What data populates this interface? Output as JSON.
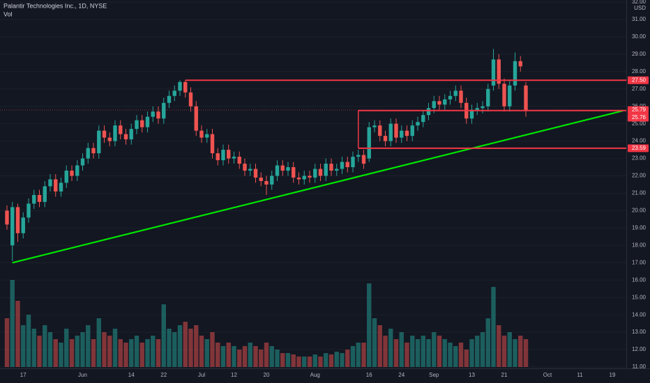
{
  "chart_data": {
    "type": "candlestick",
    "title": "Palantir Technologies Inc., 1D, NYSE",
    "volume_label": "Vol",
    "currency": "USD",
    "up_color": "#26a69a",
    "down_color": "#ef5350",
    "categories": [
      null,
      null,
      null,
      "17",
      null,
      null,
      null,
      null,
      null,
      null,
      null,
      null,
      null,
      null,
      "Jun",
      null,
      null,
      null,
      null,
      null,
      null,
      null,
      null,
      "14",
      null,
      null,
      null,
      null,
      null,
      "22",
      null,
      null,
      null,
      null,
      null,
      null,
      "Jul",
      null,
      null,
      null,
      null,
      null,
      "12",
      null,
      null,
      null,
      null,
      null,
      "20",
      null,
      null,
      null,
      null,
      null,
      null,
      null,
      null,
      "Aug",
      null,
      null,
      null,
      null,
      null,
      null,
      null,
      null,
      null,
      "16",
      null,
      null,
      null,
      null,
      null,
      "24",
      null,
      null,
      null,
      null,
      null,
      "Sep",
      null,
      null,
      null,
      null,
      null,
      null,
      "13",
      null,
      null,
      null,
      null,
      null,
      "21",
      null,
      null,
      null,
      null,
      null,
      null,
      null,
      "Oct",
      null,
      null,
      null,
      null,
      null,
      "11",
      null,
      null,
      null,
      null,
      null,
      "19",
      null,
      null
    ],
    "open": [
      20.0,
      18.0,
      20.2,
      18.7,
      19.6,
      20.4,
      20.9,
      20.5,
      21.4,
      21.8,
      21.1,
      21.6,
      22.3,
      22.0,
      22.6,
      23.0,
      23.6,
      23.3,
      24.6,
      24.2,
      24.0,
      24.9,
      24.4,
      24.1,
      24.7,
      25.2,
      24.8,
      25.4,
      25.7,
      25.3,
      26.2,
      26.6,
      26.9,
      27.4,
      26.8,
      26.0,
      24.6,
      24.2,
      24.4,
      23.3,
      22.9,
      23.5,
      23.0,
      23.1,
      22.7,
      22.3,
      22.4,
      21.9,
      21.7,
      21.5,
      22.0,
      22.6,
      22.3,
      22.5,
      21.9,
      21.8,
      22.0,
      21.9,
      22.4,
      22.0,
      22.7,
      22.3,
      22.4,
      22.8,
      22.5,
      23.1,
      23.2,
      23.0,
      24.8,
      24.9,
      24.3,
      24.0,
      25.0,
      24.2,
      24.6,
      24.3,
      24.9,
      25.1,
      25.5,
      25.9,
      26.3,
      26.1,
      26.4,
      26.6,
      26.9,
      26.2,
      25.3,
      25.8,
      25.9,
      26.0,
      27.2,
      28.7,
      27.3,
      26.0,
      27.2,
      28.6,
      27.2,
      null,
      null,
      null,
      null,
      null,
      null,
      null,
      null,
      null,
      null,
      null,
      null,
      null,
      null,
      null,
      null,
      null,
      null
    ],
    "high": [
      20.3,
      20.5,
      20.4,
      19.9,
      20.7,
      21.2,
      21.2,
      21.7,
      22.1,
      22.1,
      21.9,
      22.6,
      22.6,
      22.9,
      23.3,
      23.9,
      23.9,
      24.9,
      24.9,
      24.5,
      25.2,
      25.2,
      24.7,
      25.0,
      25.5,
      25.5,
      25.7,
      26.0,
      26.0,
      26.5,
      26.9,
      27.2,
      27.5,
      27.5,
      27.1,
      26.3,
      24.9,
      24.7,
      24.7,
      23.6,
      23.8,
      23.8,
      23.4,
      23.4,
      23.0,
      22.7,
      22.7,
      22.2,
      22.0,
      22.3,
      22.9,
      22.9,
      22.8,
      22.8,
      22.2,
      22.3,
      22.3,
      22.7,
      22.7,
      23.0,
      23.0,
      22.7,
      23.1,
      23.1,
      23.4,
      23.5,
      23.5,
      25.1,
      25.2,
      25.2,
      24.6,
      25.3,
      25.3,
      24.9,
      24.9,
      25.2,
      25.4,
      25.8,
      26.2,
      26.6,
      26.6,
      26.7,
      26.9,
      27.2,
      27.2,
      26.5,
      26.1,
      26.2,
      26.3,
      27.3,
      29.3,
      29.0,
      27.6,
      27.5,
      29.1,
      28.9,
      27.4,
      null,
      null,
      null,
      null,
      null,
      null,
      null,
      null,
      null,
      null,
      null,
      null,
      null,
      null,
      null,
      null,
      null,
      null
    ],
    "low": [
      18.9,
      17.1,
      18.2,
      18.4,
      19.3,
      20.1,
      20.2,
      20.2,
      21.1,
      20.8,
      20.8,
      21.3,
      21.7,
      21.7,
      22.3,
      22.7,
      23.0,
      23.0,
      23.9,
      23.7,
      23.7,
      24.1,
      23.8,
      23.8,
      24.4,
      24.5,
      24.5,
      25.1,
      25.0,
      25.0,
      25.9,
      26.3,
      26.6,
      26.5,
      25.7,
      24.3,
      23.9,
      23.9,
      23.0,
      22.6,
      22.6,
      22.7,
      22.7,
      22.4,
      22.0,
      22.0,
      21.6,
      21.4,
      20.9,
      21.2,
      21.7,
      22.0,
      22.0,
      21.6,
      21.5,
      21.5,
      21.6,
      21.6,
      21.7,
      21.7,
      22.0,
      22.0,
      22.1,
      22.2,
      22.2,
      22.8,
      22.4,
      22.8,
      24.5,
      24.0,
      23.7,
      23.7,
      23.9,
      23.9,
      24.0,
      24.0,
      24.6,
      24.8,
      25.2,
      25.6,
      25.8,
      25.8,
      26.1,
      26.3,
      25.9,
      25.0,
      25.0,
      25.5,
      25.6,
      25.7,
      26.9,
      27.0,
      25.7,
      25.7,
      26.9,
      28.0,
      25.4,
      null,
      null,
      null,
      null,
      null,
      null,
      null,
      null,
      null,
      null,
      null,
      null,
      null,
      null,
      null,
      null,
      null,
      null
    ],
    "close": [
      19.2,
      20.2,
      18.7,
      19.6,
      20.4,
      20.9,
      20.5,
      21.4,
      21.8,
      21.1,
      21.6,
      22.3,
      22.0,
      22.6,
      23.0,
      23.6,
      23.3,
      24.6,
      24.2,
      24.0,
      24.9,
      24.4,
      24.1,
      24.7,
      25.2,
      24.8,
      25.4,
      25.7,
      25.3,
      26.2,
      26.6,
      26.9,
      27.4,
      26.8,
      26.0,
      24.6,
      24.2,
      24.4,
      23.3,
      22.9,
      23.5,
      23.0,
      23.1,
      22.7,
      22.3,
      22.4,
      21.9,
      21.7,
      21.5,
      22.0,
      22.6,
      22.3,
      22.5,
      21.9,
      21.8,
      22.0,
      21.9,
      22.4,
      22.0,
      22.7,
      22.3,
      22.4,
      22.8,
      22.5,
      23.1,
      23.2,
      22.7,
      24.8,
      24.9,
      24.3,
      24.0,
      25.0,
      24.2,
      24.6,
      24.3,
      24.9,
      25.1,
      25.5,
      25.9,
      26.3,
      26.1,
      26.4,
      26.6,
      26.9,
      26.2,
      25.3,
      25.8,
      25.9,
      26.0,
      27.0,
      28.7,
      27.3,
      26.0,
      27.2,
      28.6,
      28.3,
      25.79,
      null,
      null,
      null,
      null,
      null,
      null,
      null,
      null,
      null,
      null,
      null,
      null,
      null,
      null,
      null,
      null,
      null,
      null
    ],
    "volume": [
      70,
      125,
      95,
      60,
      75,
      55,
      45,
      60,
      50,
      40,
      35,
      55,
      40,
      45,
      50,
      60,
      40,
      70,
      50,
      45,
      55,
      40,
      35,
      40,
      45,
      35,
      40,
      45,
      40,
      90,
      55,
      50,
      60,
      65,
      55,
      60,
      45,
      40,
      50,
      35,
      30,
      35,
      30,
      25,
      30,
      35,
      30,
      25,
      35,
      30,
      25,
      20,
      20,
      18,
      15,
      15,
      15,
      18,
      15,
      20,
      18,
      22,
      20,
      25,
      30,
      35,
      35,
      120,
      70,
      60,
      45,
      55,
      40,
      50,
      35,
      45,
      40,
      45,
      40,
      50,
      45,
      40,
      35,
      30,
      35,
      25,
      40,
      45,
      50,
      70,
      115,
      60,
      45,
      50,
      40,
      45,
      40,
      null,
      null,
      null,
      null,
      null,
      null,
      null,
      null,
      null,
      null,
      null,
      null,
      null,
      null,
      null,
      null,
      null,
      null
    ],
    "volume_ylim": [
      0,
      130
    ],
    "ylim": [
      11,
      32
    ],
    "yticks": [
      {
        "value": 11,
        "label": "11.00"
      },
      {
        "value": 12,
        "label": "12.00"
      },
      {
        "value": 13,
        "label": "13.00"
      },
      {
        "value": 14,
        "label": "14.00"
      },
      {
        "value": 15,
        "label": "15.00"
      },
      {
        "value": 16,
        "label": "16.00"
      },
      {
        "value": 17,
        "label": "17.00"
      },
      {
        "value": 18,
        "label": "18.00"
      },
      {
        "value": 19,
        "label": "19.00"
      },
      {
        "value": 20,
        "label": "20.00"
      },
      {
        "value": 21,
        "label": "21.00"
      },
      {
        "value": 22,
        "label": "22.00"
      },
      {
        "value": 23,
        "label": "23.00"
      },
      {
        "value": 24,
        "label": "24.00"
      },
      {
        "value": 25,
        "label": "25.00"
      },
      {
        "value": 26,
        "label": "26.00"
      },
      {
        "value": 27,
        "label": "27.00"
      },
      {
        "value": 28,
        "label": "28.00"
      },
      {
        "value": 29,
        "label": "29.00"
      },
      {
        "value": 30,
        "label": "30.00"
      },
      {
        "value": 31,
        "label": "31.00"
      },
      {
        "value": 32,
        "label": "32.00"
      }
    ],
    "last_price": {
      "value": 25.79,
      "label": "25.79"
    },
    "levels": [
      {
        "value": 27.5,
        "label": "27.50",
        "start": 33
      },
      {
        "value": 25.76,
        "label": "25.76",
        "start": 65
      },
      {
        "value": 23.59,
        "label": "23.59",
        "start": 65
      }
    ],
    "trendline": {
      "x": [
        1,
        114
      ],
      "y": [
        17.0,
        25.75
      ],
      "color": "#00e600"
    },
    "level_color": "#f23645"
  }
}
